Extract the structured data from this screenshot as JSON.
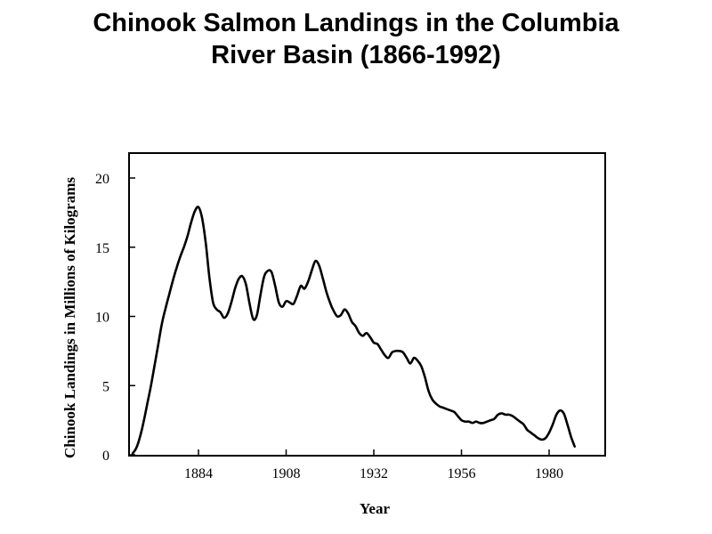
{
  "title": {
    "line1": "Chinook Salmon Landings in the Columbia",
    "line2": "River Basin (1866-1992)"
  },
  "chart_data": {
    "type": "line",
    "xlabel": "Year",
    "ylabel": "Chinook Landings in Millions of Kilograms",
    "xlim": [
      1866,
      1992
    ],
    "ylim": [
      0,
      22
    ],
    "x_ticks": [
      1884,
      1908,
      1932,
      1956,
      1980
    ],
    "y_ticks": [
      0,
      5,
      10,
      15,
      20
    ],
    "series": [
      {
        "values": [
          [
            1866,
            0.1
          ],
          [
            1867,
            0.5
          ],
          [
            1868,
            1.3
          ],
          [
            1869,
            2.4
          ],
          [
            1870,
            3.7
          ],
          [
            1871,
            5.0
          ],
          [
            1872,
            6.5
          ],
          [
            1873,
            8.0
          ],
          [
            1874,
            9.5
          ],
          [
            1875,
            10.6
          ],
          [
            1876,
            11.6
          ],
          [
            1877,
            12.6
          ],
          [
            1878,
            13.5
          ],
          [
            1879,
            14.3
          ],
          [
            1880,
            15.0
          ],
          [
            1881,
            15.8
          ],
          [
            1882,
            16.8
          ],
          [
            1883,
            17.6
          ],
          [
            1884,
            17.9
          ],
          [
            1885,
            17.1
          ],
          [
            1886,
            15.3
          ],
          [
            1887,
            12.8
          ],
          [
            1888,
            11.0
          ],
          [
            1889,
            10.5
          ],
          [
            1890,
            10.3
          ],
          [
            1891,
            9.9
          ],
          [
            1892,
            10.2
          ],
          [
            1893,
            11.0
          ],
          [
            1894,
            12.0
          ],
          [
            1895,
            12.7
          ],
          [
            1896,
            12.9
          ],
          [
            1897,
            12.3
          ],
          [
            1898,
            10.9
          ],
          [
            1899,
            9.8
          ],
          [
            1900,
            10.1
          ],
          [
            1901,
            11.6
          ],
          [
            1902,
            12.9
          ],
          [
            1903,
            13.3
          ],
          [
            1904,
            13.2
          ],
          [
            1905,
            12.2
          ],
          [
            1906,
            11.0
          ],
          [
            1907,
            10.7
          ],
          [
            1908,
            11.1
          ],
          [
            1909,
            11.0
          ],
          [
            1910,
            10.9
          ],
          [
            1911,
            11.5
          ],
          [
            1912,
            12.2
          ],
          [
            1913,
            12.0
          ],
          [
            1914,
            12.5
          ],
          [
            1915,
            13.3
          ],
          [
            1916,
            14.0
          ],
          [
            1917,
            13.7
          ],
          [
            1918,
            12.8
          ],
          [
            1919,
            11.8
          ],
          [
            1920,
            11.0
          ],
          [
            1921,
            10.4
          ],
          [
            1922,
            10.0
          ],
          [
            1923,
            10.1
          ],
          [
            1924,
            10.5
          ],
          [
            1925,
            10.2
          ],
          [
            1926,
            9.6
          ],
          [
            1927,
            9.3
          ],
          [
            1928,
            8.8
          ],
          [
            1929,
            8.6
          ],
          [
            1930,
            8.8
          ],
          [
            1931,
            8.5
          ],
          [
            1932,
            8.1
          ],
          [
            1933,
            8.0
          ],
          [
            1934,
            7.6
          ],
          [
            1935,
            7.2
          ],
          [
            1936,
            7.0
          ],
          [
            1937,
            7.4
          ],
          [
            1938,
            7.5
          ],
          [
            1939,
            7.5
          ],
          [
            1940,
            7.4
          ],
          [
            1941,
            7.0
          ],
          [
            1942,
            6.6
          ],
          [
            1943,
            7.0
          ],
          [
            1944,
            6.8
          ],
          [
            1945,
            6.4
          ],
          [
            1946,
            5.6
          ],
          [
            1947,
            4.6
          ],
          [
            1948,
            4.0
          ],
          [
            1949,
            3.7
          ],
          [
            1950,
            3.5
          ],
          [
            1951,
            3.4
          ],
          [
            1952,
            3.3
          ],
          [
            1953,
            3.2
          ],
          [
            1954,
            3.1
          ],
          [
            1955,
            2.8
          ],
          [
            1956,
            2.5
          ],
          [
            1957,
            2.4
          ],
          [
            1958,
            2.4
          ],
          [
            1959,
            2.3
          ],
          [
            1960,
            2.4
          ],
          [
            1961,
            2.3
          ],
          [
            1962,
            2.3
          ],
          [
            1963,
            2.4
          ],
          [
            1964,
            2.5
          ],
          [
            1965,
            2.6
          ],
          [
            1966,
            2.9
          ],
          [
            1967,
            3.0
          ],
          [
            1968,
            2.9
          ],
          [
            1969,
            2.9
          ],
          [
            1970,
            2.8
          ],
          [
            1971,
            2.6
          ],
          [
            1972,
            2.4
          ],
          [
            1973,
            2.2
          ],
          [
            1974,
            1.8
          ],
          [
            1975,
            1.6
          ],
          [
            1976,
            1.4
          ],
          [
            1977,
            1.2
          ],
          [
            1978,
            1.1
          ],
          [
            1979,
            1.2
          ],
          [
            1980,
            1.6
          ],
          [
            1981,
            2.2
          ],
          [
            1982,
            2.9
          ],
          [
            1983,
            3.2
          ],
          [
            1984,
            3.0
          ],
          [
            1985,
            2.2
          ],
          [
            1986,
            1.3
          ],
          [
            1987,
            0.6
          ]
        ]
      }
    ]
  }
}
